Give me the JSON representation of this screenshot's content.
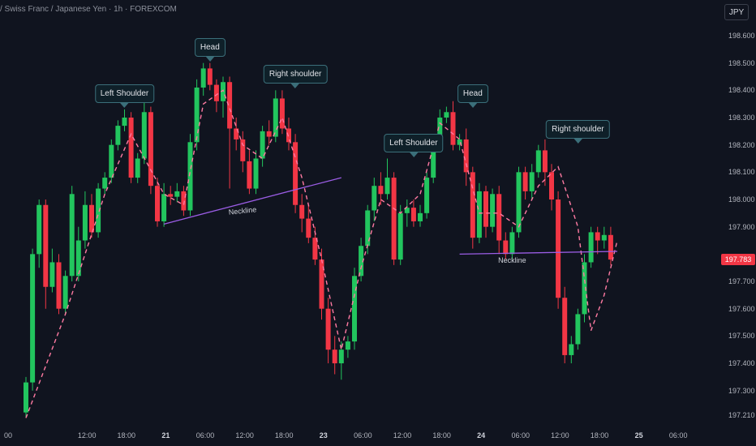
{
  "header": {
    "title": "/ Swiss Franc / Japanese Yen · 1h · FOREXCOM"
  },
  "toolbar": {
    "currency": "JPY"
  },
  "price_badge": "197.783",
  "colors": {
    "up": "#22c55e",
    "down": "#f23645",
    "neckline": "#9b5de5",
    "ma": "#ff7aa2",
    "callout_border": "#3b6f7a"
  },
  "annotations": {
    "left_shoulder_1": "Left Shoulder",
    "head_1": "Head",
    "right_shoulder_1": "Right shoulder",
    "neckline_1": "Neckline",
    "left_shoulder_2": "Left Shoulder",
    "head_2": "Head",
    "right_shoulder_2": "Right shoulder",
    "neckline_2": "Neckline"
  },
  "chart_data": {
    "type": "candlestick",
    "y_axis": {
      "position": "right",
      "ylim": [
        197.18,
        198.68
      ],
      "ticks": [
        "198.600",
        "198.500",
        "198.400",
        "198.300",
        "198.200",
        "198.100",
        "198.000",
        "197.900",
        "197.700",
        "197.600",
        "197.500",
        "197.400",
        "197.300",
        "197.210"
      ]
    },
    "x_axis": {
      "ticks": [
        {
          "label": "00",
          "idx": 0,
          "day": false
        },
        {
          "label": "12:00",
          "idx": 12,
          "day": false
        },
        {
          "label": "18:00",
          "idx": 18,
          "day": false
        },
        {
          "label": "21",
          "idx": 24,
          "day": true
        },
        {
          "label": "06:00",
          "idx": 30,
          "day": false
        },
        {
          "label": "12:00",
          "idx": 36,
          "day": false
        },
        {
          "label": "18:00",
          "idx": 42,
          "day": false
        },
        {
          "label": "23",
          "idx": 48,
          "day": true
        },
        {
          "label": "06:00",
          "idx": 54,
          "day": false
        },
        {
          "label": "12:00",
          "idx": 60,
          "day": false
        },
        {
          "label": "18:00",
          "idx": 66,
          "day": false
        },
        {
          "label": "24",
          "idx": 72,
          "day": true
        },
        {
          "label": "06:00",
          "idx": 78,
          "day": false
        },
        {
          "label": "12:00",
          "idx": 84,
          "day": false
        },
        {
          "label": "18:00",
          "idx": 90,
          "day": false
        },
        {
          "label": "25",
          "idx": 96,
          "day": true
        },
        {
          "label": "06:00",
          "idx": 102,
          "day": false
        }
      ]
    },
    "candles": [
      [
        197.22,
        197.33,
        197.35,
        197.2
      ],
      [
        197.33,
        197.8,
        197.82,
        197.3
      ],
      [
        197.8,
        197.98,
        198.0,
        197.75
      ],
      [
        197.98,
        197.68,
        198.0,
        197.6
      ],
      [
        197.68,
        197.77,
        197.82,
        197.66
      ],
      [
        197.77,
        197.6,
        197.8,
        197.58
      ],
      [
        197.6,
        197.72,
        197.74,
        197.58
      ],
      [
        197.72,
        198.02,
        198.05,
        197.7
      ],
      [
        197.72,
        197.85,
        197.9,
        197.7
      ],
      [
        197.85,
        197.98,
        198.03,
        197.82
      ],
      [
        197.98,
        197.88,
        198.02,
        197.86
      ],
      [
        197.88,
        198.04,
        198.06,
        197.86
      ],
      [
        198.04,
        198.08,
        198.1,
        198.02
      ],
      [
        198.08,
        198.2,
        198.22,
        198.06
      ],
      [
        198.2,
        198.27,
        198.29,
        198.18
      ],
      [
        198.27,
        198.3,
        198.33,
        198.25
      ],
      [
        198.3,
        198.08,
        198.32,
        198.06
      ],
      [
        198.08,
        198.15,
        198.17,
        198.06
      ],
      [
        198.15,
        198.32,
        198.36,
        198.13
      ],
      [
        198.32,
        198.05,
        198.34,
        198.02
      ],
      [
        198.05,
        197.92,
        198.08,
        197.9
      ],
      [
        197.92,
        198.02,
        198.06,
        197.9
      ],
      [
        198.02,
        198.01,
        198.05,
        197.98
      ],
      [
        198.01,
        198.03,
        198.06,
        197.99
      ],
      [
        198.03,
        197.96,
        198.05,
        197.94
      ],
      [
        197.96,
        198.21,
        198.24,
        197.94
      ],
      [
        198.21,
        198.41,
        198.44,
        198.18
      ],
      [
        198.41,
        198.48,
        198.5,
        198.38
      ],
      [
        198.48,
        198.42,
        198.5,
        198.4
      ],
      [
        198.42,
        198.36,
        198.44,
        198.32
      ],
      [
        198.36,
        198.43,
        198.45,
        198.3
      ],
      [
        198.43,
        198.26,
        198.45,
        198.04
      ],
      [
        198.26,
        198.22,
        198.3,
        198.18
      ],
      [
        198.22,
        198.14,
        198.25,
        198.1
      ],
      [
        198.14,
        198.04,
        198.18,
        198.02
      ],
      [
        198.04,
        198.15,
        198.18,
        198.02
      ],
      [
        198.15,
        198.25,
        198.27,
        198.12
      ],
      [
        198.25,
        198.23,
        198.29,
        198.2
      ],
      [
        198.23,
        198.37,
        198.4,
        198.21
      ],
      [
        198.37,
        198.26,
        198.4,
        198.24
      ],
      [
        198.26,
        198.21,
        198.3,
        198.18
      ],
      [
        198.21,
        197.98,
        198.24,
        197.95
      ],
      [
        197.98,
        197.93,
        198.02,
        197.88
      ],
      [
        197.93,
        197.86,
        197.98,
        197.84
      ],
      [
        197.86,
        197.78,
        197.9,
        197.76
      ],
      [
        197.78,
        197.6,
        197.82,
        197.56
      ],
      [
        197.6,
        197.45,
        197.64,
        197.4
      ],
      [
        197.45,
        197.4,
        197.5,
        197.36
      ],
      [
        197.4,
        197.45,
        197.48,
        197.34
      ],
      [
        197.45,
        197.48,
        197.5,
        197.42
      ],
      [
        197.48,
        197.72,
        197.75,
        197.45
      ],
      [
        197.72,
        197.83,
        197.86,
        197.7
      ],
      [
        197.83,
        197.96,
        197.98,
        197.8
      ],
      [
        197.96,
        198.05,
        198.08,
        197.92
      ],
      [
        198.05,
        198.02,
        198.1,
        197.98
      ],
      [
        198.02,
        198.08,
        198.15,
        198.0
      ],
      [
        198.08,
        197.78,
        198.1,
        197.76
      ],
      [
        197.78,
        197.95,
        197.98,
        197.76
      ],
      [
        197.95,
        197.97,
        198.0,
        197.9
      ],
      [
        197.97,
        197.92,
        198.0,
        197.9
      ],
      [
        197.92,
        197.95,
        197.98,
        197.9
      ],
      [
        197.95,
        198.08,
        198.1,
        197.93
      ],
      [
        198.08,
        198.2,
        198.22,
        198.06
      ],
      [
        198.2,
        198.3,
        198.33,
        198.18
      ],
      [
        198.3,
        198.32,
        198.34,
        198.28
      ],
      [
        198.32,
        198.2,
        198.36,
        198.18
      ],
      [
        198.2,
        198.22,
        198.24,
        198.18
      ],
      [
        198.22,
        198.1,
        198.26,
        198.05
      ],
      [
        198.1,
        197.86,
        198.12,
        197.82
      ],
      [
        197.86,
        198.03,
        198.06,
        197.84
      ],
      [
        198.03,
        197.9,
        198.05,
        197.86
      ],
      [
        197.9,
        198.02,
        198.04,
        197.88
      ],
      [
        198.02,
        197.85,
        198.05,
        197.8
      ],
      [
        197.85,
        197.8,
        197.88,
        197.78
      ],
      [
        197.8,
        197.88,
        197.9,
        197.78
      ],
      [
        197.88,
        198.1,
        198.12,
        197.86
      ],
      [
        198.1,
        198.03,
        198.12,
        198.0
      ],
      [
        198.03,
        198.1,
        198.13,
        198.0
      ],
      [
        198.1,
        198.18,
        198.2,
        198.08
      ],
      [
        198.18,
        198.1,
        198.22,
        198.05
      ],
      [
        198.1,
        198.0,
        198.13,
        197.96
      ],
      [
        198.0,
        197.64,
        198.03,
        197.6
      ],
      [
        197.64,
        197.43,
        197.68,
        197.4
      ],
      [
        197.43,
        197.47,
        197.5,
        197.4
      ],
      [
        197.47,
        197.58,
        197.6,
        197.45
      ],
      [
        197.58,
        197.77,
        197.8,
        197.55
      ],
      [
        197.77,
        197.88,
        197.9,
        197.75
      ],
      [
        197.88,
        197.85,
        197.9,
        197.8
      ],
      [
        197.85,
        197.87,
        197.9,
        197.82
      ],
      [
        197.87,
        197.78,
        197.9,
        197.76
      ]
    ],
    "moving_average": [
      [
        0,
        197.2
      ],
      [
        6,
        197.58
      ],
      [
        12,
        198.02
      ],
      [
        16,
        198.24
      ],
      [
        21,
        198.02
      ],
      [
        24,
        197.98
      ],
      [
        27,
        198.35
      ],
      [
        30,
        198.4
      ],
      [
        33,
        198.2
      ],
      [
        36,
        198.15
      ],
      [
        39,
        198.3
      ],
      [
        42,
        198.08
      ],
      [
        45,
        197.78
      ],
      [
        48,
        197.45
      ],
      [
        51,
        197.75
      ],
      [
        54,
        198.0
      ],
      [
        57,
        197.95
      ],
      [
        60,
        198.02
      ],
      [
        63,
        198.28
      ],
      [
        66,
        198.22
      ],
      [
        69,
        197.95
      ],
      [
        72,
        197.95
      ],
      [
        75,
        197.9
      ],
      [
        78,
        198.05
      ],
      [
        81,
        198.12
      ],
      [
        84,
        197.9
      ],
      [
        86,
        197.52
      ],
      [
        88,
        197.65
      ],
      [
        90,
        197.85
      ]
    ],
    "necklines": [
      {
        "from": [
          21,
          197.91
        ],
        "to": [
          48,
          198.08
        ]
      },
      {
        "from": [
          66,
          197.8
        ],
        "to": [
          90,
          197.81
        ]
      }
    ]
  }
}
